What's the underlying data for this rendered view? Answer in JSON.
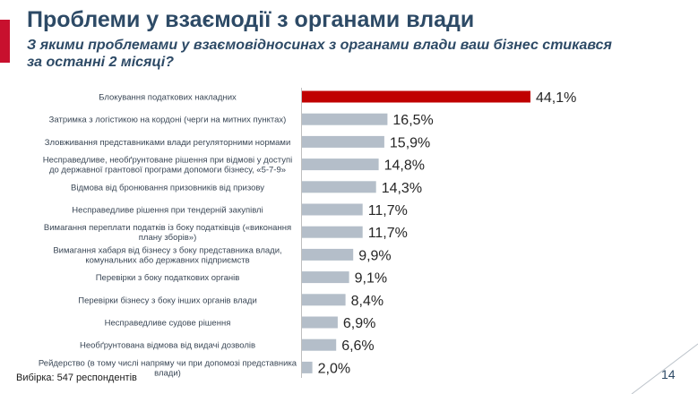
{
  "header": {
    "title": "Проблеми у взаємодії з органами влади",
    "subtitle": "З якими проблемами у взаємовідносинах з органами влади ваш бізнес стикався за останні 2 місяці?"
  },
  "footer": {
    "sample": "Вибірка: 547 респондентів",
    "page_number": "14"
  },
  "colors": {
    "accent": "#c8102e",
    "highlight_bar": "#c00000",
    "bar": "#b4bec9",
    "title": "#2d4a66"
  },
  "chart_data": {
    "type": "bar",
    "orientation": "horizontal",
    "categories": [
      [
        "Блокування податкових накладних"
      ],
      [
        "Затримка з логістикою на кордоні (черги на митних пунктах)"
      ],
      [
        "Зловживання представниками влади регуляторними нормами"
      ],
      [
        "Несправедливе, необґрунтоване рішення при відмові у доступі",
        "до державної грантової програми допомоги бізнесу, «5-7-9»"
      ],
      [
        "Відмова від бронювання призовників від призову"
      ],
      [
        "Несправедливе рішення при тендерній закупівлі"
      ],
      [
        "Вимагання переплати податків із боку податківців («виконання",
        "плану зборів»)"
      ],
      [
        "Вимагання хабаря від бізнесу з боку представника влади,",
        "комунальних або державних підприємств"
      ],
      [
        "Перевірки з боку податкових органів"
      ],
      [
        "Перевірки бізнесу з боку інших органів влади"
      ],
      [
        "Несправедливе судове рішення"
      ],
      [
        "Необґрунтована відмова від видачі дозволів"
      ],
      [
        "Рейдерство (в тому числі напряму чи при допомозі представника",
        "влади)"
      ]
    ],
    "values": [
      44.1,
      16.5,
      15.9,
      14.8,
      14.3,
      11.7,
      11.7,
      9.9,
      9.1,
      8.4,
      6.9,
      6.6,
      2.0
    ],
    "data_labels": [
      "44,1%",
      "16,5%",
      "15,9%",
      "14,8%",
      "14,3%",
      "11,7%",
      "11,7%",
      "9,9%",
      "9,1%",
      "8,4%",
      "6,9%",
      "6,6%",
      "2,0%"
    ],
    "highlight_index": 0,
    "xlim": [
      0,
      44.1
    ],
    "grid": false,
    "legend": "none"
  }
}
